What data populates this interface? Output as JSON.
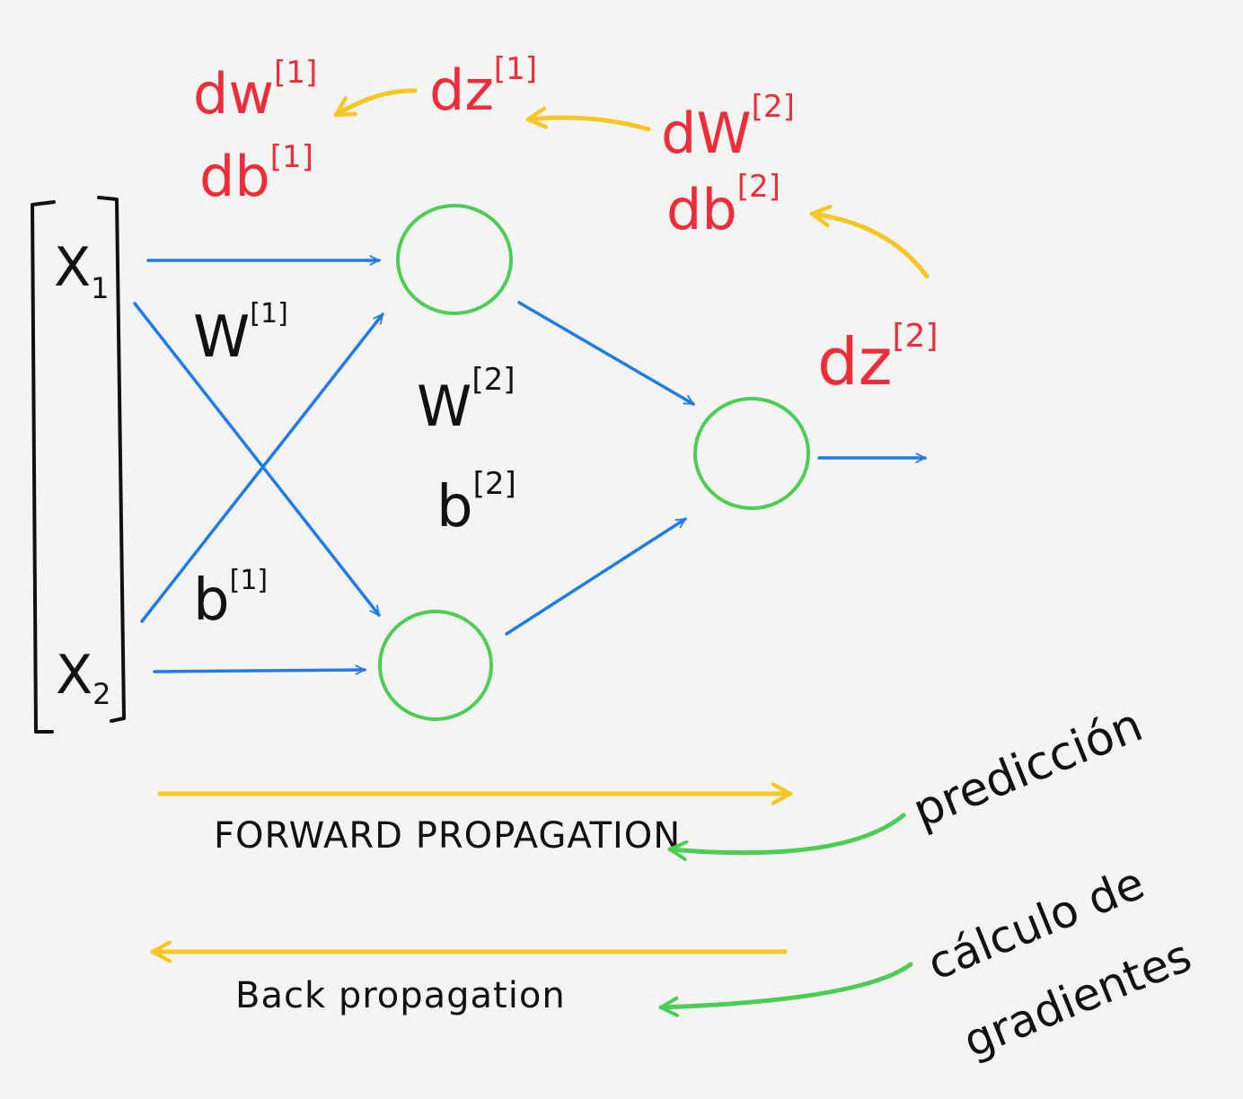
{
  "colors": {
    "background": "#f4f4f2",
    "forward_edge": "#1f7be8",
    "neuron": "#4ccd55",
    "gradient_text": "#ee2d3a",
    "backprop_arrow": "#f7c524",
    "annotation_arrow": "#4ccd55",
    "ink": "#111111"
  },
  "inputs": {
    "x1": {
      "base": "X",
      "sub": "1"
    },
    "x2": {
      "base": "X",
      "sub": "2"
    }
  },
  "params": {
    "w1": {
      "base": "W",
      "sup": "[1]"
    },
    "b1": {
      "base": "b",
      "sup": "[1]"
    },
    "w2": {
      "base": "W",
      "sup": "[2]"
    },
    "b2": {
      "base": "b",
      "sup": "[2]"
    }
  },
  "gradients": {
    "dw1": {
      "base": "dw",
      "sup": "[1]"
    },
    "db1": {
      "base": "db",
      "sup": "[1]"
    },
    "dz1": {
      "base": "dz",
      "sup": "[1]"
    },
    "dw2": {
      "base": "dW",
      "sup": "[2]"
    },
    "db2": {
      "base": "db",
      "sup": "[2]"
    },
    "dz2": {
      "base": "dz",
      "sup": "[2]"
    }
  },
  "captions": {
    "forward": "FORWARD PROPAGATION",
    "back": "Back propagation"
  },
  "annotations": {
    "prediction": "predicción",
    "gradients_line1": "cálculo de",
    "gradients_line2": "gradientes"
  }
}
